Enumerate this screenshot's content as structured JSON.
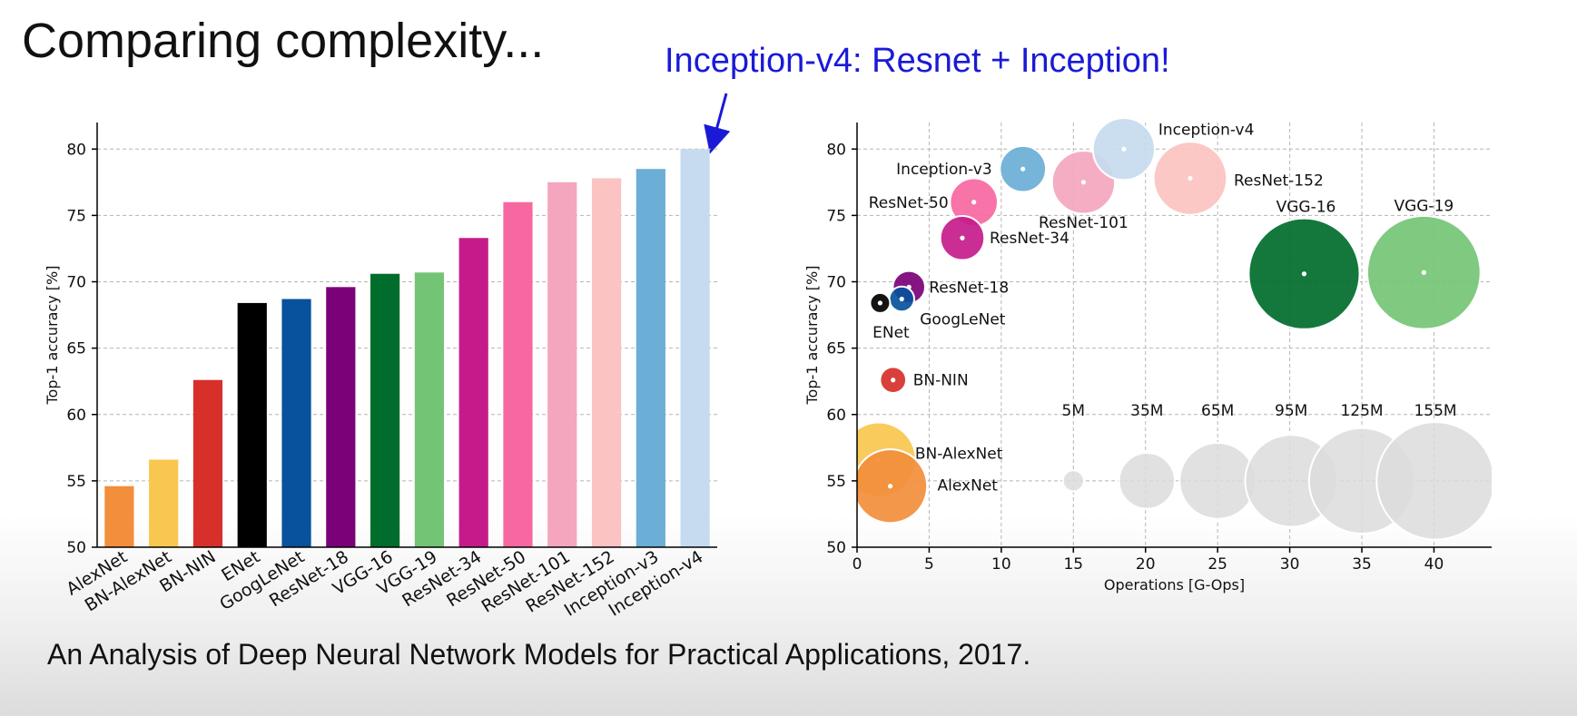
{
  "slide": {
    "title": "Comparing complexity...",
    "callout": "Inception-v4: Resnet + Inception!",
    "citation": "An Analysis of Deep Neural Network Models for Practical Applications, 2017."
  },
  "chart_data": [
    {
      "type": "bar",
      "categories": [
        "AlexNet",
        "BN-AlexNet",
        "BN-NIN",
        "ENet",
        "GoogLeNet",
        "ResNet-18",
        "VGG-16",
        "VGG-19",
        "ResNet-34",
        "ResNet-50",
        "ResNet-101",
        "ResNet-152",
        "Inception-v3",
        "Inception-v4"
      ],
      "values": [
        54.6,
        56.6,
        62.6,
        68.4,
        68.7,
        69.6,
        70.6,
        70.7,
        73.3,
        76.0,
        77.5,
        77.8,
        78.5,
        80.0
      ],
      "colors": [
        "#f28e3c",
        "#f9c74f",
        "#d7302a",
        "#000000",
        "#08519c",
        "#7a0177",
        "#006d2c",
        "#74c476",
        "#c51b8a",
        "#f768a1",
        "#f4a6bf",
        "#fbc3c1",
        "#6baed6",
        "#c6dbef"
      ],
      "xlabel": "",
      "ylabel": "Top-1 accuracy [%]",
      "ylim": [
        50,
        82
      ],
      "yticks": [
        50,
        55,
        60,
        65,
        70,
        75,
        80
      ],
      "grid": true
    },
    {
      "type": "scatter",
      "xlabel": "Operations [G-Ops]",
      "ylabel": "Top-1 accuracy [%]",
      "xlim": [
        0,
        44
      ],
      "ylim": [
        50,
        82
      ],
      "xticks": [
        0,
        5,
        10,
        15,
        20,
        25,
        30,
        35,
        40
      ],
      "yticks": [
        50,
        55,
        60,
        65,
        70,
        75,
        80
      ],
      "grid": true,
      "size_unit": "parameters (M)",
      "points": [
        {
          "name": "AlexNet",
          "ops": 2.3,
          "acc": 54.6,
          "params": 61,
          "color": "#f28e3c"
        },
        {
          "name": "BN-AlexNet",
          "ops": 1.5,
          "acc": 56.6,
          "params": 62,
          "color": "#f9c74f"
        },
        {
          "name": "BN-NIN",
          "ops": 2.5,
          "acc": 62.6,
          "params": 7.6,
          "color": "#d7302a"
        },
        {
          "name": "ENet",
          "ops": 1.6,
          "acc": 68.4,
          "params": 0.4,
          "color": "#000000"
        },
        {
          "name": "GoogLeNet",
          "ops": 3.1,
          "acc": 68.7,
          "params": 7,
          "color": "#08519c"
        },
        {
          "name": "ResNet-18",
          "ops": 3.6,
          "acc": 69.6,
          "params": 11.7,
          "color": "#7a0177"
        },
        {
          "name": "VGG-16",
          "ops": 31.0,
          "acc": 70.6,
          "params": 138,
          "color": "#006d2c"
        },
        {
          "name": "VGG-19",
          "ops": 39.3,
          "acc": 70.7,
          "params": 144,
          "color": "#74c476"
        },
        {
          "name": "ResNet-34",
          "ops": 7.3,
          "acc": 73.3,
          "params": 21.8,
          "color": "#c51b8a"
        },
        {
          "name": "ResNet-50",
          "ops": 8.1,
          "acc": 76.0,
          "params": 25.6,
          "color": "#f768a1"
        },
        {
          "name": "ResNet-101",
          "ops": 15.7,
          "acc": 77.5,
          "params": 44.5,
          "color": "#f4a6bf"
        },
        {
          "name": "ResNet-152",
          "ops": 23.1,
          "acc": 77.8,
          "params": 60.2,
          "color": "#fbc3c1"
        },
        {
          "name": "Inception-v3",
          "ops": 11.5,
          "acc": 78.5,
          "params": 23.8,
          "color": "#6baed6"
        },
        {
          "name": "Inception-v4",
          "ops": 18.5,
          "acc": 80.0,
          "params": 43,
          "color": "#c6dbef"
        }
      ],
      "size_legend": {
        "acc": 55,
        "items": [
          {
            "label": "5M",
            "ops": 15.0,
            "params": 5
          },
          {
            "label": "35M",
            "ops": 20.1,
            "params": 35
          },
          {
            "label": "65M",
            "ops": 25.0,
            "params": 65
          },
          {
            "label": "95M",
            "ops": 30.1,
            "params": 95
          },
          {
            "label": "125M",
            "ops": 35.0,
            "params": 125
          },
          {
            "label": "155M",
            "ops": 40.1,
            "params": 155
          }
        ]
      }
    }
  ]
}
